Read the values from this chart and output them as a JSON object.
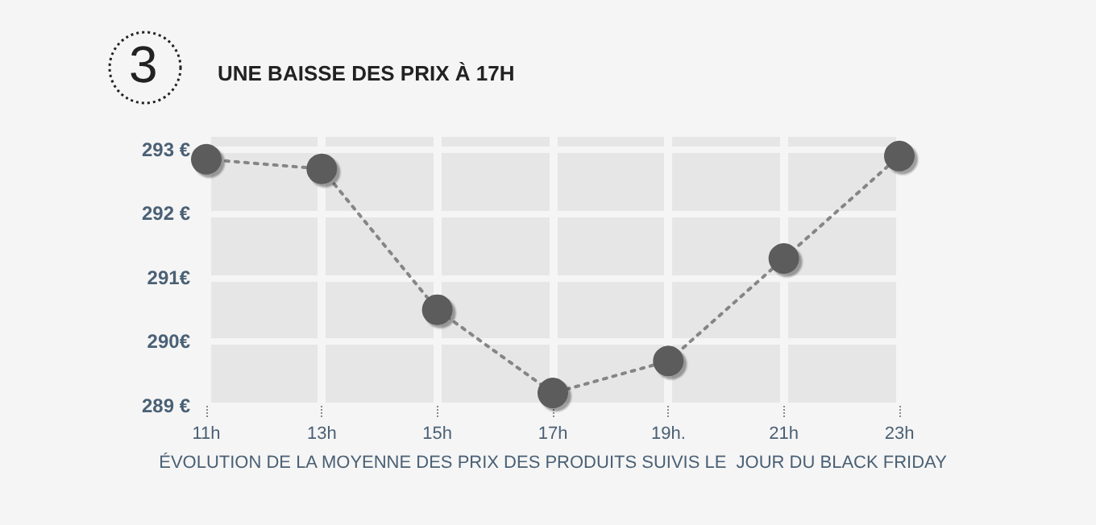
{
  "chart_data": {
    "type": "line",
    "title": "UNE BAISSE DES PRIX À 17H",
    "annotations": [
      "3"
    ],
    "xlabel": "ÉVOLUTION DE LA MOYENNE DES PRIX DES PRODUITS SUIVIS LE  JOUR DU BLACK FRIDAY",
    "categories": [
      "11h",
      "13h",
      "15h",
      "17h",
      "19h.",
      "21h",
      "23h"
    ],
    "series": [
      {
        "color": "#5b5b5b",
        "values": [
          292.85,
          292.7,
          290.5,
          289.2,
          289.7,
          291.3,
          292.9
        ]
      }
    ],
    "ylim": [
      289,
      293.2
    ],
    "yticks": [
      {
        "value": 289,
        "label": "289 €"
      },
      {
        "value": 290,
        "label": "290€"
      },
      {
        "value": 291,
        "label": "291€"
      },
      {
        "value": 292,
        "label": "292 €"
      },
      {
        "value": 293,
        "label": "293 €"
      }
    ],
    "grid": true,
    "marker": "circle",
    "line_style": "dotted"
  }
}
